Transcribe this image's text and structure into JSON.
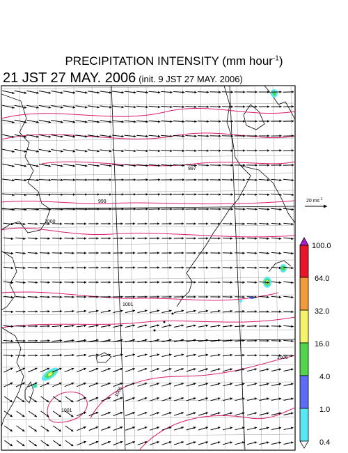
{
  "title": {
    "main": "PRECIPITATION INTENSITY (mm hour",
    "unit_exponent": "-1",
    "close_paren": ")"
  },
  "subtitle": {
    "valid_time": "21 JST 27 MAY. 2006",
    "init_time": "(init. 9 JST 27 MAY. 2006)"
  },
  "wind_reference": {
    "label": "20 ms",
    "exponent": "-1"
  },
  "isobar_labels": [
    "999",
    "1000",
    "997",
    "1001",
    "1001",
    "1006",
    "1006"
  ],
  "colorbar": {
    "levels": [
      "100.0",
      "64.0",
      "32.0",
      "16.0",
      "4.0",
      "1.0",
      "0.4"
    ],
    "colors": [
      "#b019d6",
      "#e8142a",
      "#f39a3a",
      "#f4f46a",
      "#4fd64a",
      "#5c6cf4",
      "#58e8f4",
      "#ffffff"
    ]
  },
  "colors": {
    "isobar": "#d81c6a",
    "coastline": "#000000",
    "grid": "#a0a0a0",
    "arrow": "#000000"
  }
}
